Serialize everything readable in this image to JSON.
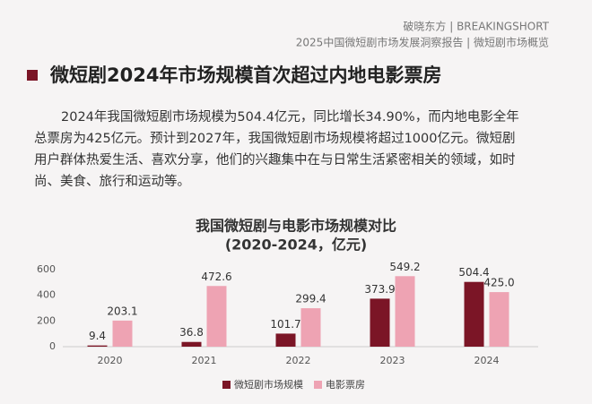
{
  "header": {
    "brand": "破晓东方 | BREAKINGSHORT",
    "report": "2025中国微短剧市场发展洞察报告 | 微短剧市场概览"
  },
  "heading": "微短剧2024年市场规模首次超过内地电影票房",
  "paragraph": [
    "2024年我国微短剧市场规模为504.4亿元，同比增长34.90%，而内地电影全年",
    "总票房为425亿元。预计到2027年，我国微短剧市场规模将超过1000亿元。微短剧",
    "用户群体热爱生活、喜欢分享，他们的兴趣集中在与日常生活紧密相关的领域，如时",
    "尚、美食、旅行和运动等。"
  ],
  "chart_data": {
    "type": "bar",
    "title": [
      "我国微短剧与电影市场规模对比",
      "(2020-2024，亿元)"
    ],
    "categories": [
      "2020",
      "2021",
      "2022",
      "2023",
      "2024"
    ],
    "series": [
      {
        "name": "微短剧市场规模",
        "color": "#7b1526",
        "values": [
          9.4,
          36.8,
          101.7,
          373.9,
          504.4
        ]
      },
      {
        "name": "电影票房",
        "color": "#eea3b3",
        "values": [
          203.1,
          472.6,
          299.4,
          549.2,
          425.0
        ],
        "value_labels": [
          "203.1",
          "472.6",
          "299.4",
          "549.2",
          "425.0"
        ]
      }
    ],
    "ylim": [
      0,
      600
    ],
    "yticks": [
      0,
      200,
      400,
      600
    ],
    "grid": false
  }
}
